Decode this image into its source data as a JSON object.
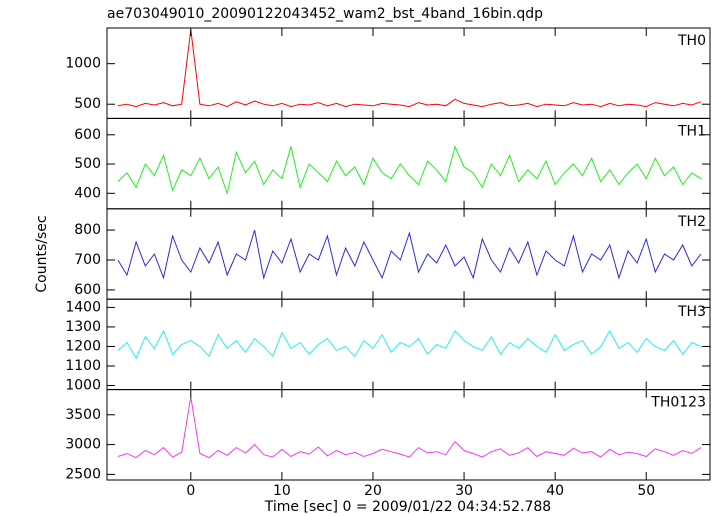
{
  "chart_data": {
    "type": "line",
    "title": "ae703049010_20090122043452_wam2_bst_4band_16bin.qdp",
    "xlabel": "Time [sec] 0 = 2009/01/22 04:34:52.788",
    "ylabel": "Counts/sec",
    "x": [
      -8,
      -7,
      -6,
      -5,
      -4,
      -3,
      -2,
      -1,
      0,
      1,
      2,
      3,
      4,
      5,
      6,
      7,
      8,
      9,
      10,
      11,
      12,
      13,
      14,
      15,
      16,
      17,
      18,
      19,
      20,
      21,
      22,
      23,
      24,
      25,
      26,
      27,
      28,
      29,
      30,
      31,
      32,
      33,
      34,
      35,
      36,
      37,
      38,
      39,
      40,
      41,
      42,
      43,
      44,
      45,
      46,
      47,
      48,
      49,
      50,
      51,
      52,
      53,
      54,
      55,
      56
    ],
    "xlim": [
      -9.2,
      57.0
    ],
    "xticks": [
      0,
      10,
      20,
      30,
      40,
      50
    ],
    "panels": [
      {
        "name": "TH0",
        "color": "#ff0000",
        "ylim": [
          325,
          1440
        ],
        "yticks": [
          500,
          1000
        ],
        "values": [
          480,
          500,
          470,
          510,
          490,
          520,
          480,
          500,
          1420,
          500,
          480,
          510,
          470,
          530,
          490,
          540,
          500,
          480,
          510,
          470,
          500,
          490,
          520,
          480,
          510,
          470,
          500,
          490,
          480,
          510,
          500,
          490,
          470,
          520,
          490,
          500,
          480,
          560,
          510,
          490,
          470,
          500,
          520,
          480,
          490,
          510,
          470,
          500,
          490,
          480,
          520,
          490,
          500,
          470,
          510,
          480,
          500,
          490,
          470,
          520,
          500,
          480,
          510,
          490,
          530
        ]
      },
      {
        "name": "TH1",
        "color": "#22ee22",
        "ylim": [
          347,
          656
        ],
        "yticks": [
          400,
          500,
          600
        ],
        "values": [
          440,
          470,
          420,
          500,
          460,
          530,
          410,
          480,
          460,
          520,
          450,
          490,
          400,
          540,
          470,
          510,
          430,
          480,
          450,
          560,
          420,
          500,
          470,
          440,
          510,
          460,
          490,
          430,
          520,
          470,
          450,
          500,
          460,
          430,
          510,
          480,
          440,
          560,
          490,
          470,
          420,
          500,
          460,
          530,
          440,
          480,
          450,
          510,
          430,
          470,
          500,
          460,
          520,
          440,
          480,
          430,
          470,
          500,
          450,
          520,
          460,
          490,
          430,
          470,
          450
        ]
      },
      {
        "name": "TH2",
        "color": "#2b2bd8",
        "ylim": [
          569,
          871
        ],
        "yticks": [
          600,
          700,
          800
        ],
        "values": [
          700,
          650,
          760,
          680,
          720,
          640,
          780,
          700,
          660,
          740,
          690,
          760,
          650,
          720,
          700,
          800,
          640,
          730,
          690,
          770,
          660,
          720,
          700,
          780,
          650,
          740,
          680,
          760,
          700,
          640,
          730,
          700,
          790,
          660,
          720,
          690,
          750,
          680,
          710,
          640,
          770,
          700,
          660,
          740,
          690,
          760,
          650,
          730,
          700,
          680,
          780,
          660,
          720,
          700,
          750,
          640,
          730,
          690,
          770,
          660,
          720,
          700,
          750,
          680,
          720
        ]
      },
      {
        "name": "TH3",
        "color": "#22f0f0",
        "ylim": [
          979,
          1442
        ],
        "yticks": [
          1000,
          1100,
          1200,
          1300,
          1400
        ],
        "values": [
          1180,
          1220,
          1140,
          1250,
          1190,
          1280,
          1160,
          1210,
          1230,
          1200,
          1150,
          1260,
          1190,
          1230,
          1170,
          1240,
          1200,
          1150,
          1270,
          1190,
          1220,
          1160,
          1210,
          1240,
          1180,
          1200,
          1150,
          1230,
          1190,
          1260,
          1170,
          1220,
          1200,
          1240,
          1160,
          1210,
          1190,
          1280,
          1230,
          1200,
          1180,
          1250,
          1160,
          1220,
          1190,
          1240,
          1200,
          1170,
          1260,
          1180,
          1210,
          1230,
          1160,
          1200,
          1280,
          1190,
          1220,
          1170,
          1240,
          1200,
          1180,
          1230,
          1160,
          1220,
          1200
        ]
      },
      {
        "name": "TH0123",
        "color": "#f03cf0",
        "ylim": [
          2406,
          3922
        ],
        "yticks": [
          2500,
          3000,
          3500
        ],
        "values": [
          2800,
          2850,
          2780,
          2900,
          2830,
          2950,
          2790,
          2870,
          3800,
          2850,
          2780,
          2900,
          2820,
          2950,
          2860,
          3000,
          2830,
          2790,
          2920,
          2800,
          2880,
          2840,
          2960,
          2810,
          2900,
          2830,
          2870,
          2800,
          2850,
          2920,
          2880,
          2840,
          2790,
          2950,
          2860,
          2880,
          2830,
          3050,
          2900,
          2850,
          2790,
          2880,
          2930,
          2820,
          2860,
          2950,
          2800,
          2880,
          2850,
          2820,
          2940,
          2860,
          2880,
          2790,
          2920,
          2830,
          2870,
          2850,
          2800,
          2930,
          2880,
          2820,
          2900,
          2850,
          2950
        ]
      }
    ]
  }
}
